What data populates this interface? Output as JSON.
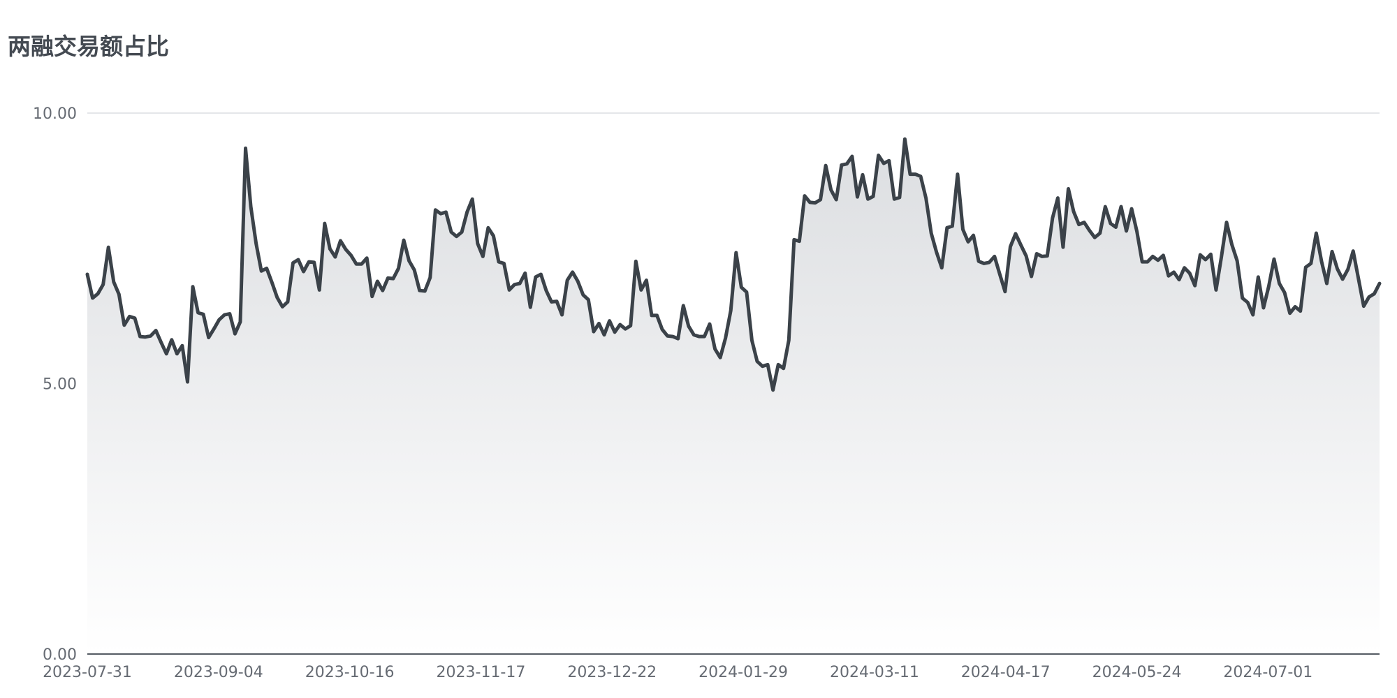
{
  "chart_data": {
    "type": "area",
    "title": "两融交易额占比",
    "xlabel": "",
    "ylabel": "",
    "ylim": [
      0,
      10
    ],
    "y_ticks": [
      "0.00",
      "5.00",
      "10.00"
    ],
    "x_ticks": [
      "2023-07-31",
      "2023-09-04",
      "2023-10-16",
      "2023-11-17",
      "2023-12-22",
      "2024-01-29",
      "2024-03-11",
      "2024-04-17",
      "2024-05-24",
      "2024-07-01"
    ],
    "grid": true,
    "legend": "none",
    "colors": {
      "line": "#3b4249",
      "fill_top": "#dcdee1",
      "fill_bottom": "#ffffff",
      "grid": "#dcdee2",
      "axis": "#555b63",
      "label": "#666b73",
      "title": "#444a52"
    },
    "series": [
      {
        "values": [
          7.02,
          6.58,
          6.66,
          6.83,
          7.52,
          6.88,
          6.65,
          6.08,
          6.24,
          6.21,
          5.87,
          5.86,
          5.88,
          5.98,
          5.76,
          5.55,
          5.81,
          5.55,
          5.7,
          5.03,
          6.79,
          6.31,
          6.28,
          5.85,
          6.01,
          6.18,
          6.27,
          6.29,
          5.92,
          6.14,
          9.35,
          8.27,
          7.59,
          7.08,
          7.13,
          6.87,
          6.59,
          6.42,
          6.51,
          7.23,
          7.29,
          7.07,
          7.25,
          7.24,
          6.73,
          7.96,
          7.49,
          7.34,
          7.64,
          7.48,
          7.37,
          7.21,
          7.21,
          7.32,
          6.61,
          6.89,
          6.72,
          6.95,
          6.94,
          7.13,
          7.65,
          7.27,
          7.1,
          6.72,
          6.71,
          6.96,
          8.21,
          8.14,
          8.17,
          7.8,
          7.72,
          7.8,
          8.17,
          8.41,
          7.59,
          7.35,
          7.88,
          7.73,
          7.25,
          7.22,
          6.73,
          6.83,
          6.85,
          7.04,
          6.41,
          6.97,
          7.02,
          6.72,
          6.51,
          6.52,
          6.27,
          6.91,
          7.06,
          6.89,
          6.64,
          6.55,
          5.96,
          6.11,
          5.9,
          6.16,
          5.95,
          6.09,
          6.01,
          6.07,
          7.26,
          6.73,
          6.91,
          6.26,
          6.26,
          6.0,
          5.88,
          5.87,
          5.83,
          6.44,
          6.06,
          5.9,
          5.87,
          5.87,
          6.1,
          5.64,
          5.48,
          5.84,
          6.35,
          7.42,
          6.78,
          6.69,
          5.8,
          5.41,
          5.32,
          5.35,
          4.88,
          5.35,
          5.28,
          5.8,
          7.66,
          7.63,
          8.47,
          8.35,
          8.34,
          8.4,
          9.03,
          8.58,
          8.4,
          9.04,
          9.06,
          9.2,
          8.45,
          8.86,
          8.41,
          8.46,
          9.22,
          9.07,
          9.12,
          8.41,
          8.44,
          9.52,
          8.87,
          8.87,
          8.83,
          8.43,
          7.78,
          7.43,
          7.14,
          7.88,
          7.91,
          8.87,
          7.85,
          7.62,
          7.74,
          7.26,
          7.22,
          7.24,
          7.35,
          7.02,
          6.7,
          7.53,
          7.77,
          7.56,
          7.36,
          6.98,
          7.4,
          7.35,
          7.36,
          8.06,
          8.43,
          7.52,
          8.6,
          8.18,
          7.94,
          7.98,
          7.83,
          7.7,
          7.78,
          8.27,
          7.96,
          7.89,
          8.27,
          7.82,
          8.23,
          7.81,
          7.25,
          7.25,
          7.35,
          7.28,
          7.37,
          6.99,
          7.06,
          6.92,
          7.14,
          7.04,
          6.81,
          7.38,
          7.29,
          7.39,
          6.73,
          7.33,
          7.98,
          7.57,
          7.27,
          6.58,
          6.5,
          6.27,
          6.97,
          6.4,
          6.8,
          7.3,
          6.85,
          6.68,
          6.3,
          6.42,
          6.34,
          7.15,
          7.22,
          7.78,
          7.26,
          6.85,
          7.44,
          7.12,
          6.93,
          7.11,
          7.45,
          6.94,
          6.43,
          6.6,
          6.66,
          6.85
        ]
      }
    ]
  }
}
